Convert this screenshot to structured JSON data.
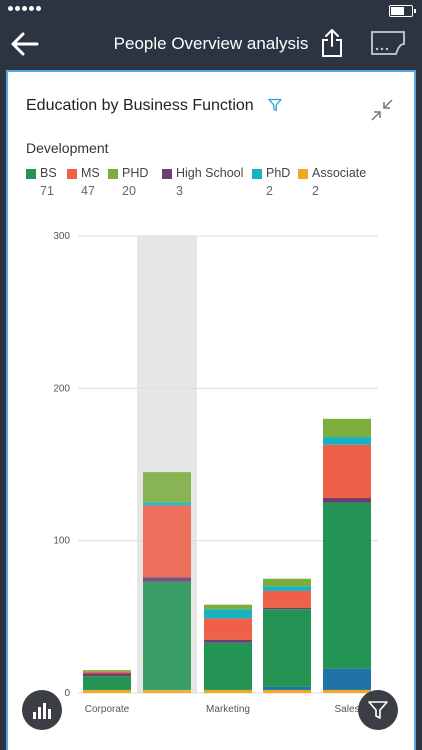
{
  "nav": {
    "title": "People Overview analysis"
  },
  "card": {
    "title": "Education by Business Function",
    "group_label": "Development"
  },
  "colors": {
    "BS": "#239454",
    "MS": "#ef6049",
    "PHD": "#7cad3f",
    "High School": "#6b3f72",
    "PhD": "#16b2c2",
    "Associate": "#f5a623",
    "Unlabeled": "#1f73a8",
    "highlight": "#e6e6e6"
  },
  "chart_data": {
    "type": "bar",
    "stacked": true,
    "categories": [
      "Corporate",
      "Development",
      "Marketing",
      "",
      "Sales"
    ],
    "x_tick_labels": [
      "Corporate",
      "",
      "Marketing",
      "",
      "Sales"
    ],
    "highlighted_category": "Development",
    "ylim": [
      0,
      300
    ],
    "y_ticks": [
      0,
      100,
      200,
      300
    ],
    "grid": true,
    "legend_position": "top-left",
    "series": [
      {
        "name": "Associate",
        "values": [
          2,
          2,
          2,
          2,
          2
        ]
      },
      {
        "name": "",
        "values": [
          0,
          0,
          0,
          2,
          14
        ]
      },
      {
        "name": "BS",
        "values": [
          9,
          71,
          31,
          51,
          109
        ]
      },
      {
        "name": "High School",
        "values": [
          2,
          3,
          2,
          1,
          3
        ]
      },
      {
        "name": "MS",
        "values": [
          1,
          47,
          14,
          11,
          35
        ]
      },
      {
        "name": "PhD",
        "values": [
          0,
          2,
          6,
          3,
          5
        ]
      },
      {
        "name": "PHD",
        "values": [
          1,
          20,
          3,
          5,
          12
        ]
      }
    ]
  },
  "legend": [
    {
      "name": "BS",
      "count": "71"
    },
    {
      "name": "MS",
      "count": "47"
    },
    {
      "name": "PHD",
      "count": "20"
    },
    {
      "name": "High School",
      "count": "3"
    },
    {
      "name": "PhD",
      "count": "2"
    },
    {
      "name": "Associate",
      "count": "2"
    }
  ]
}
